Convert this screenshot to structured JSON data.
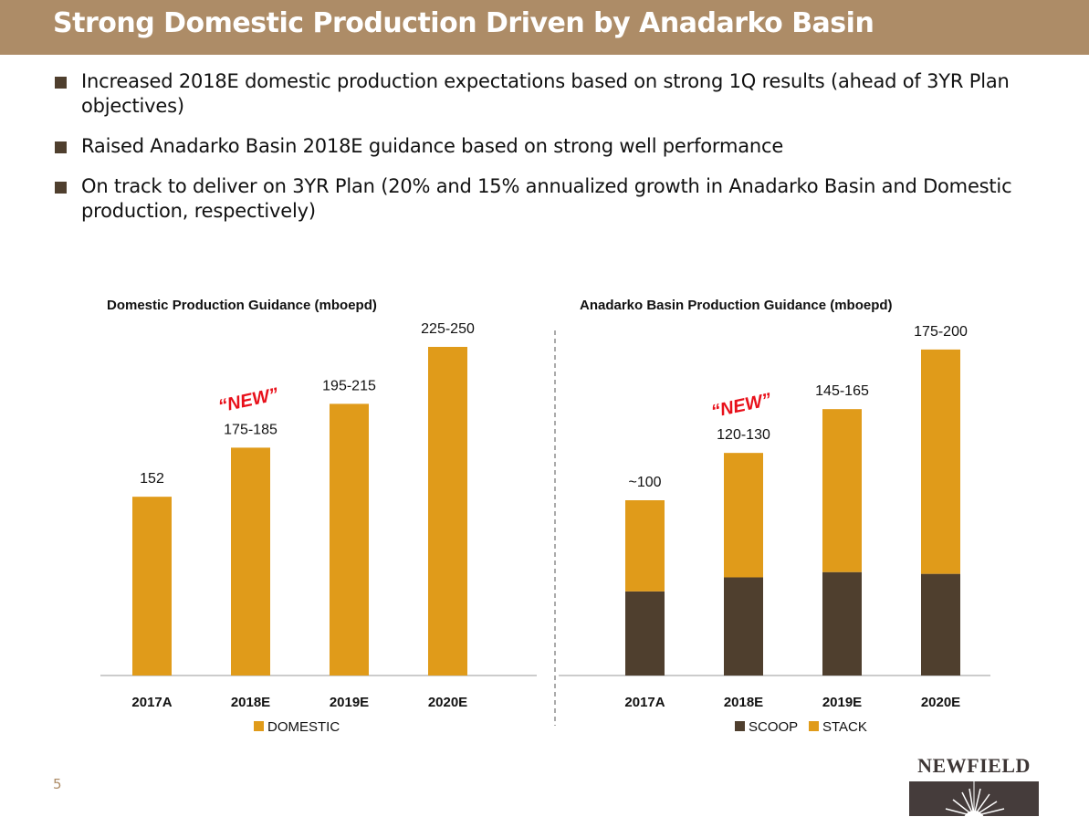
{
  "title": "Strong Domestic Production Driven by Anadarko Basin",
  "bullets": [
    "Increased 2018E domestic production expectations based on strong 1Q results (ahead of 3YR Plan objectives)",
    "Raised Anadarko Basin 2018E guidance based on strong well performance",
    "On track to deliver on 3YR Plan (20% and 15% annualized growth in Anadarko Basin and Domestic production, respectively)"
  ],
  "page_number": "5",
  "logo_text": "NEWFIELD",
  "colors": {
    "header": "#AD8C67",
    "domestic": "#E09B1A",
    "stack": "#E09B1A",
    "scoop": "#4F3F2E",
    "new_label": "#E8101A"
  },
  "chart_data": [
    {
      "type": "bar",
      "title": "Domestic Production Guidance (mboepd)",
      "categories": [
        "2017A",
        "2018E",
        "2019E",
        "2020E"
      ],
      "series": [
        {
          "name": "DOMESTIC",
          "values": [
            152,
            180,
            205,
            237.5
          ]
        }
      ],
      "data_labels": [
        "152",
        "175-185",
        "195-215",
        "225-250"
      ],
      "annotations": [
        {
          "category": "2018E",
          "text": "“NEW”"
        }
      ],
      "ylim": [
        50,
        250
      ],
      "grid": false,
      "legend": "bottom"
    },
    {
      "type": "bar",
      "stacked": true,
      "title": "Anadarko Basin Production Guidance (mboepd)",
      "categories": [
        "2017A",
        "2018E",
        "2019E",
        "2020E"
      ],
      "series": [
        {
          "name": "SCOOP",
          "values": [
            48,
            56,
            59,
            58
          ]
        },
        {
          "name": "STACK",
          "values": [
            52,
            71,
            93,
            128
          ]
        }
      ],
      "data_labels": [
        "~100",
        "120-130",
        "145-165",
        "175-200"
      ],
      "annotations": [
        {
          "category": "2018E",
          "text": "“NEW”"
        }
      ],
      "ylim": [
        0,
        200
      ],
      "grid": false,
      "legend": "bottom"
    }
  ]
}
